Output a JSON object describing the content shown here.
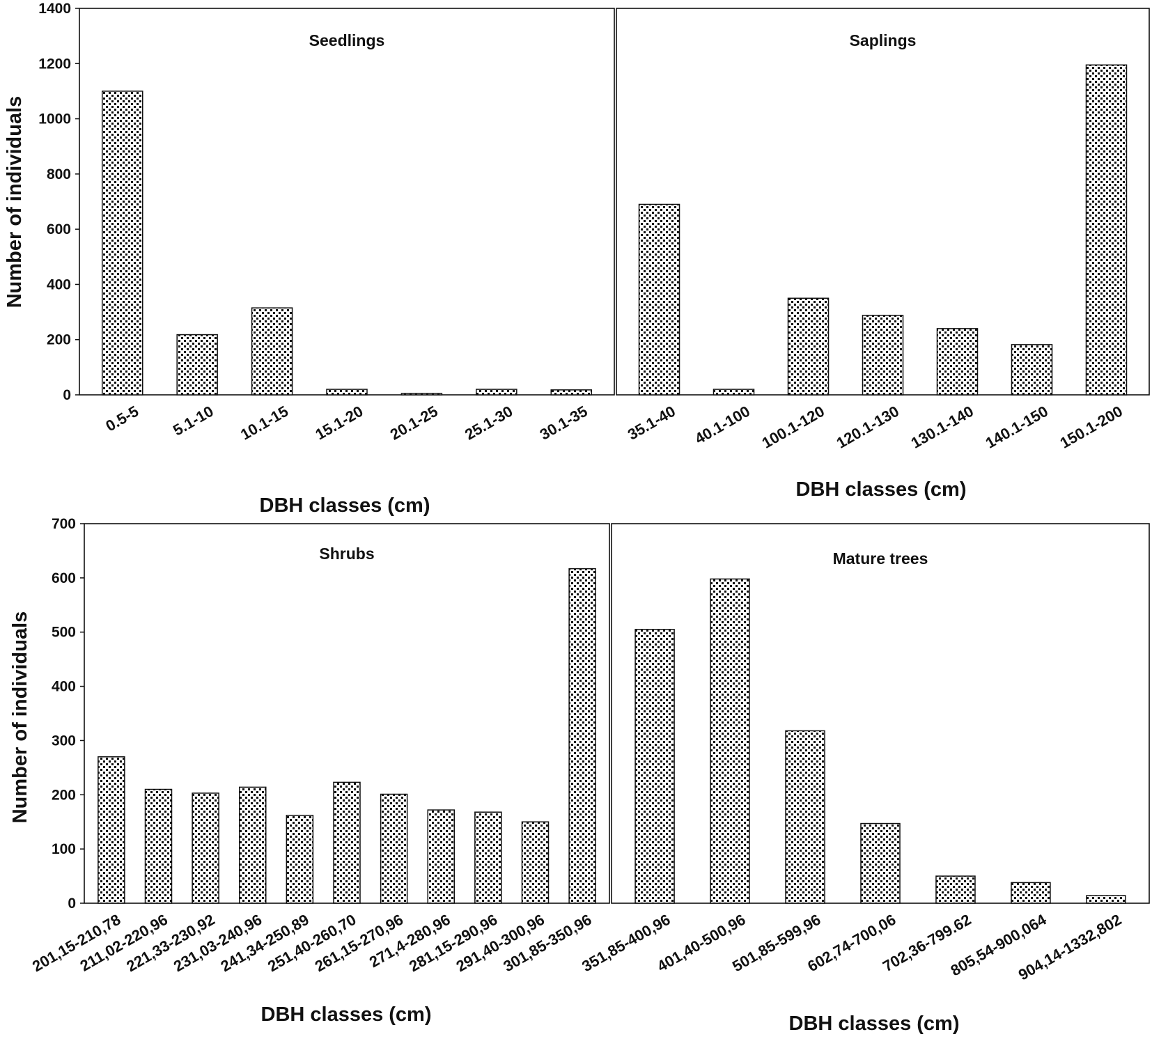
{
  "chart_data": [
    {
      "type": "bar",
      "title": "Seedlings",
      "xlabel": "DBH classes (cm)",
      "ylabel": "Number of individuals",
      "ylim": [
        0,
        1400
      ],
      "yticks": [
        0,
        200,
        400,
        600,
        800,
        1000,
        1200,
        1400
      ],
      "categories": [
        "0.5-5",
        "5.1-10",
        "10.1-15",
        "15.1-20",
        "20.1-25",
        "25.1-30",
        "30.1-35"
      ],
      "values": [
        1100,
        218,
        315,
        20,
        5,
        20,
        18
      ]
    },
    {
      "type": "bar",
      "title": "Saplings",
      "xlabel": "DBH classes (cm)",
      "ylabel": "",
      "ylim": [
        0,
        1400
      ],
      "yticks": [],
      "categories": [
        "35.1-40",
        "40.1-100",
        "100.1-120",
        "120.1-130",
        "130.1-140",
        "140.1-150",
        "150.1-200"
      ],
      "values": [
        690,
        20,
        350,
        288,
        240,
        182,
        1195
      ]
    },
    {
      "type": "bar",
      "title": "Shrubs",
      "xlabel": "DBH classes (cm)",
      "ylabel": "Number of individuals",
      "ylim": [
        0,
        700
      ],
      "yticks": [
        0,
        100,
        200,
        300,
        400,
        500,
        600,
        700
      ],
      "categories": [
        "201,15-210,78",
        "211,02-220,96",
        "221,33-230,92",
        "231,03-240,96",
        "241,34-250,89",
        "251,40-260,70",
        "261,15-270,96",
        "271,4-280,96",
        "281,15-290,96",
        "291,40-300,96",
        "301,85-350,96"
      ],
      "values": [
        270,
        210,
        203,
        214,
        162,
        223,
        201,
        172,
        168,
        150,
        617
      ]
    },
    {
      "type": "bar",
      "title": "Mature trees",
      "xlabel": "DBH classes (cm)",
      "ylabel": "",
      "ylim": [
        0,
        700
      ],
      "yticks": [],
      "categories": [
        "351,85-400,96",
        "401,40-500,96",
        "501,85-599,96",
        "602,74-700,06",
        "702,36-799.62",
        "805,54-900,064",
        "904,14-1332,802"
      ],
      "values": [
        505,
        598,
        318,
        147,
        50,
        38,
        14
      ]
    }
  ]
}
